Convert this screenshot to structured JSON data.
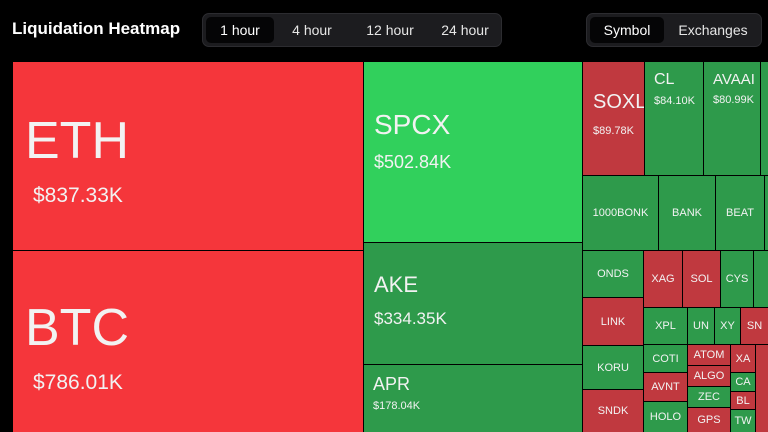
{
  "header": {
    "title": "Liquidation Heatmap",
    "timeframes": [
      {
        "label": "1 hour",
        "active": true
      },
      {
        "label": "4 hour",
        "active": false
      },
      {
        "label": "12 hour",
        "active": false
      },
      {
        "label": "24 hour",
        "active": false
      }
    ],
    "views": [
      {
        "label": "Symbol",
        "active": true
      },
      {
        "label": "Exchanges",
        "active": false
      }
    ]
  },
  "tiles": [
    {
      "label": "ETH",
      "value": "$837.33K",
      "color": "#f5363b"
    },
    {
      "label": "BTC",
      "value": "$786.01K",
      "color": "#f5363b"
    },
    {
      "label": "SPCX",
      "value": "$502.84K",
      "color": "#31d05c"
    },
    {
      "label": "AKE",
      "value": "$334.35K",
      "color": "#2e9a4b"
    },
    {
      "label": "APR",
      "value": "$178.04K",
      "color": "#2e9a4b"
    },
    {
      "label": "SOXL",
      "value": "$89.78K",
      "color": "#c0393f"
    },
    {
      "label": "CL",
      "value": "$84.10K",
      "color": "#2e9a4b"
    },
    {
      "label": "AVAAI",
      "value": "$80.99K",
      "color": "#2e9a4b"
    },
    {
      "label": "1000BONK",
      "color": "#2e9a4b"
    },
    {
      "label": "BANK",
      "color": "#2e9a4b"
    },
    {
      "label": "BEAT",
      "color": "#2e9a4b"
    },
    {
      "label": "ONDS",
      "color": "#2e9a4b"
    },
    {
      "label": "XAG",
      "color": "#c0393f"
    },
    {
      "label": "SOL",
      "color": "#c0393f"
    },
    {
      "label": "CYS",
      "color": "#2e9a4b"
    },
    {
      "label": "LINK",
      "color": "#c0393f"
    },
    {
      "label": "KORU",
      "color": "#2e9a4b"
    },
    {
      "label": "SNDK",
      "color": "#c0393f"
    },
    {
      "label": "XPL",
      "color": "#2e9a4b"
    },
    {
      "label": "COTI",
      "color": "#2e9a4b"
    },
    {
      "label": "AVNT",
      "color": "#c0393f"
    },
    {
      "label": "HOLO",
      "color": "#2e9a4b"
    },
    {
      "label": "UN",
      "color": "#2e9a4b"
    },
    {
      "label": "XY",
      "color": "#2e9a4b"
    },
    {
      "label": "SN",
      "color": "#c0393f"
    },
    {
      "label": "ATOM",
      "color": "#c0393f"
    },
    {
      "label": "ALGO",
      "color": "#c0393f"
    },
    {
      "label": "ZEC",
      "color": "#2e9a4b"
    },
    {
      "label": "GPS",
      "color": "#c0393f"
    },
    {
      "label": "XA",
      "color": "#c0393f"
    },
    {
      "label": "CA",
      "color": "#2e9a4b"
    },
    {
      "label": "BL",
      "color": "#c0393f"
    },
    {
      "label": "TW",
      "color": "#2e9a4b"
    }
  ]
}
